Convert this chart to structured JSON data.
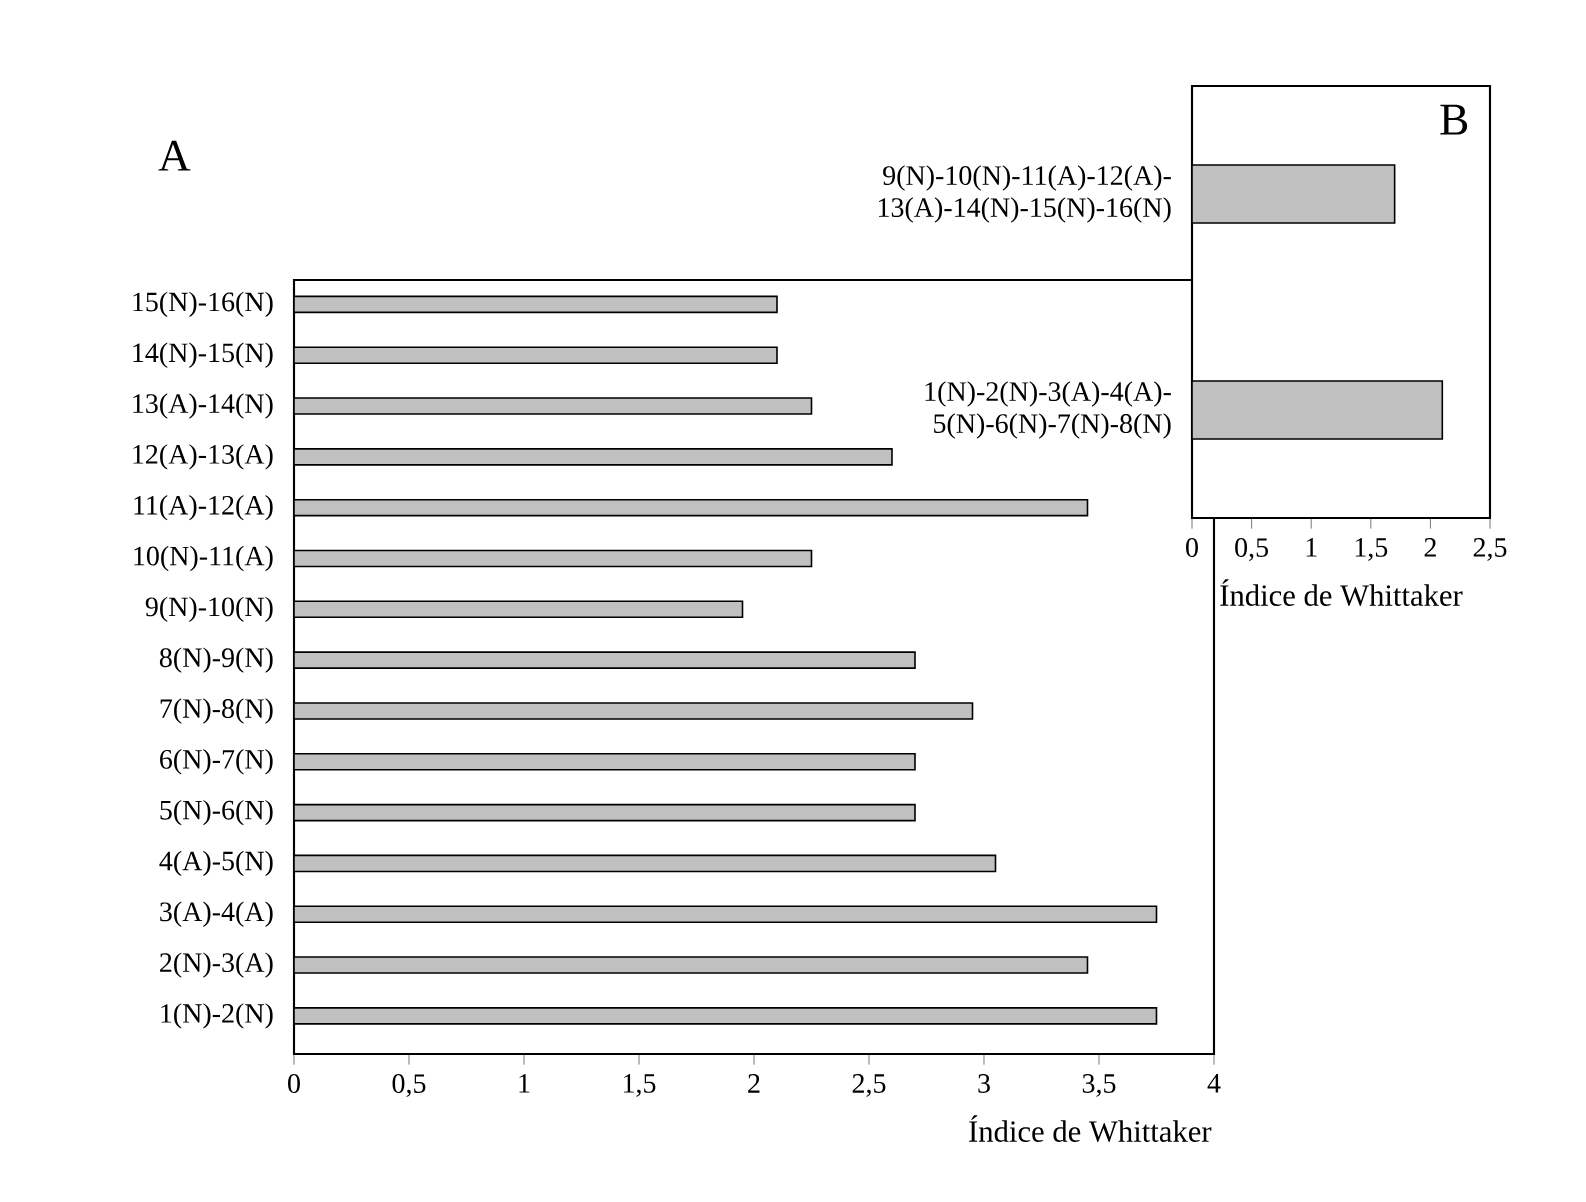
{
  "chart_data": [
    {
      "type": "bar",
      "orientation": "horizontal",
      "title": "A",
      "xlabel": "Índice de Whittaker",
      "categories": [
        "15(N)-16(N)",
        "14(N)-15(N)",
        "13(A)-14(N)",
        "12(A)-13(A)",
        "11(A)-12(A)",
        "10(N)-11(A)",
        "9(N)-10(N)",
        "8(N)-9(N)",
        "7(N)-8(N)",
        "6(N)-7(N)",
        "5(N)-6(N)",
        "4(A)-5(N)",
        "3(A)-4(A)",
        "2(N)-3(A)",
        "1(N)-2(N)"
      ],
      "values": [
        2.1,
        2.1,
        2.25,
        2.6,
        3.45,
        2.25,
        1.95,
        2.7,
        2.95,
        2.7,
        2.7,
        3.05,
        3.75,
        3.45,
        3.75
      ],
      "color": "#c0c0c0",
      "xlim": [
        0,
        4
      ],
      "xticks": [
        0,
        {
          "value": 0.5,
          "label": "0,5"
        },
        1,
        {
          "value": 1.5,
          "label": "1,5"
        },
        2,
        {
          "value": 2.5,
          "label": "2,5"
        },
        3,
        {
          "value": 3.5,
          "label": "3,5"
        },
        4
      ]
    },
    {
      "type": "bar",
      "orientation": "horizontal",
      "title": "B",
      "xlabel": "Índice de Whittaker",
      "categories": [
        "9(N)-10(N)-11(A)-12(A)-13(A)-14(N)-15(N)-16(N)",
        "1(N)-2(N)-3(A)-4(A)-5(N)-6(N)-7(N)-8(N)"
      ],
      "values": [
        1.7,
        2.1
      ],
      "color": "#c0c0c0",
      "xlim": [
        0,
        2.5
      ],
      "xticks": [
        0,
        {
          "value": 0.5,
          "label": "0,5"
        },
        1,
        {
          "value": 1.5,
          "label": "1,5"
        },
        2,
        {
          "value": 2.5,
          "label": "2,5"
        }
      ]
    }
  ]
}
